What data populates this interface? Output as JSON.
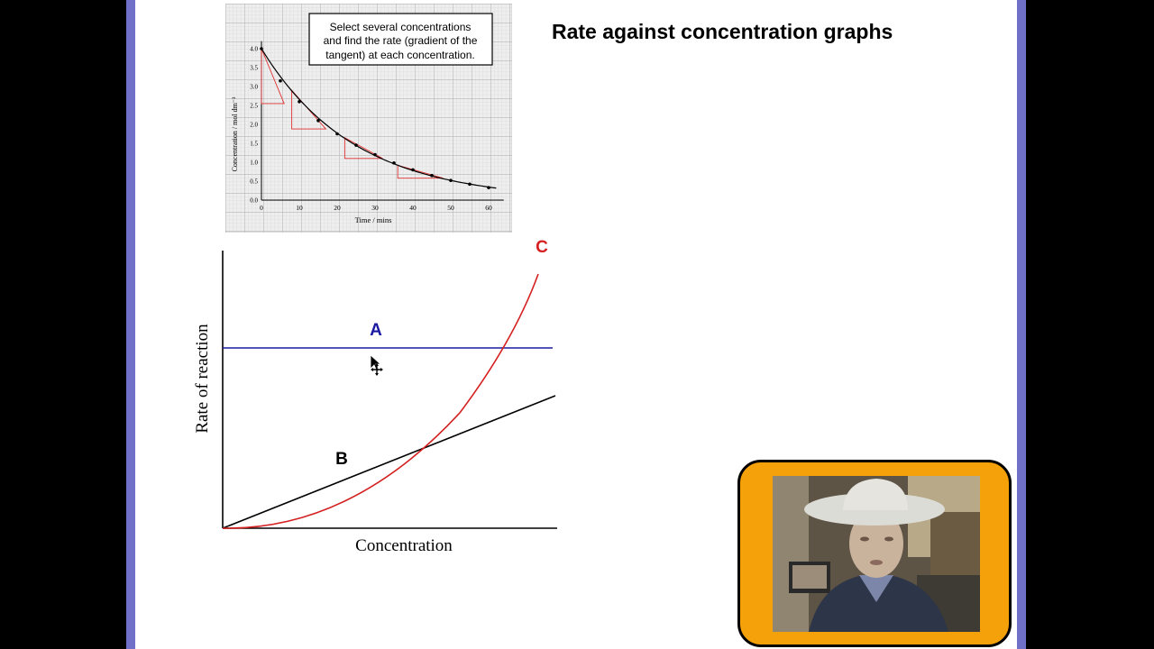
{
  "slide": {
    "title": "Rate against concentration graphs"
  },
  "concentration_time_graph": {
    "note_lines": [
      "Select several concentrations",
      "and find the rate (gradient of the",
      "tangent) at each concentration."
    ],
    "ylabel": "Concentration / mol dm⁻³",
    "xlabel": "Time / mins",
    "x_ticks": [
      "0",
      "10",
      "20",
      "30",
      "40",
      "50",
      "60"
    ],
    "y_ticks": [
      "4.0",
      "3.5",
      "3.0",
      "2.5",
      "2.0",
      "1.5",
      "1.0",
      "0.5",
      "0.0"
    ],
    "points": [
      {
        "t": 0,
        "c": 4.0
      },
      {
        "t": 5,
        "c": 3.15
      },
      {
        "t": 10,
        "c": 2.6
      },
      {
        "t": 15,
        "c": 2.1
      },
      {
        "t": 20,
        "c": 1.75
      },
      {
        "t": 25,
        "c": 1.45
      },
      {
        "t": 30,
        "c": 1.2
      },
      {
        "t": 35,
        "c": 0.98
      },
      {
        "t": 40,
        "c": 0.8
      },
      {
        "t": 45,
        "c": 0.65
      },
      {
        "t": 50,
        "c": 0.52
      },
      {
        "t": 55,
        "c": 0.42
      },
      {
        "t": 60,
        "c": 0.33
      }
    ]
  },
  "rate_graph": {
    "ylabel": "Rate of reaction",
    "xlabel": "Concentration",
    "curves": [
      {
        "label": "A",
        "color": "#1a1aa0"
      },
      {
        "label": "B",
        "color": "#000000"
      },
      {
        "label": "C",
        "color": "#d42020"
      }
    ]
  },
  "colors": {
    "frame": "#7070c8",
    "webcam_border": "#f5a20a",
    "grid": "#bcbcbc",
    "tangent": "#e03030"
  }
}
